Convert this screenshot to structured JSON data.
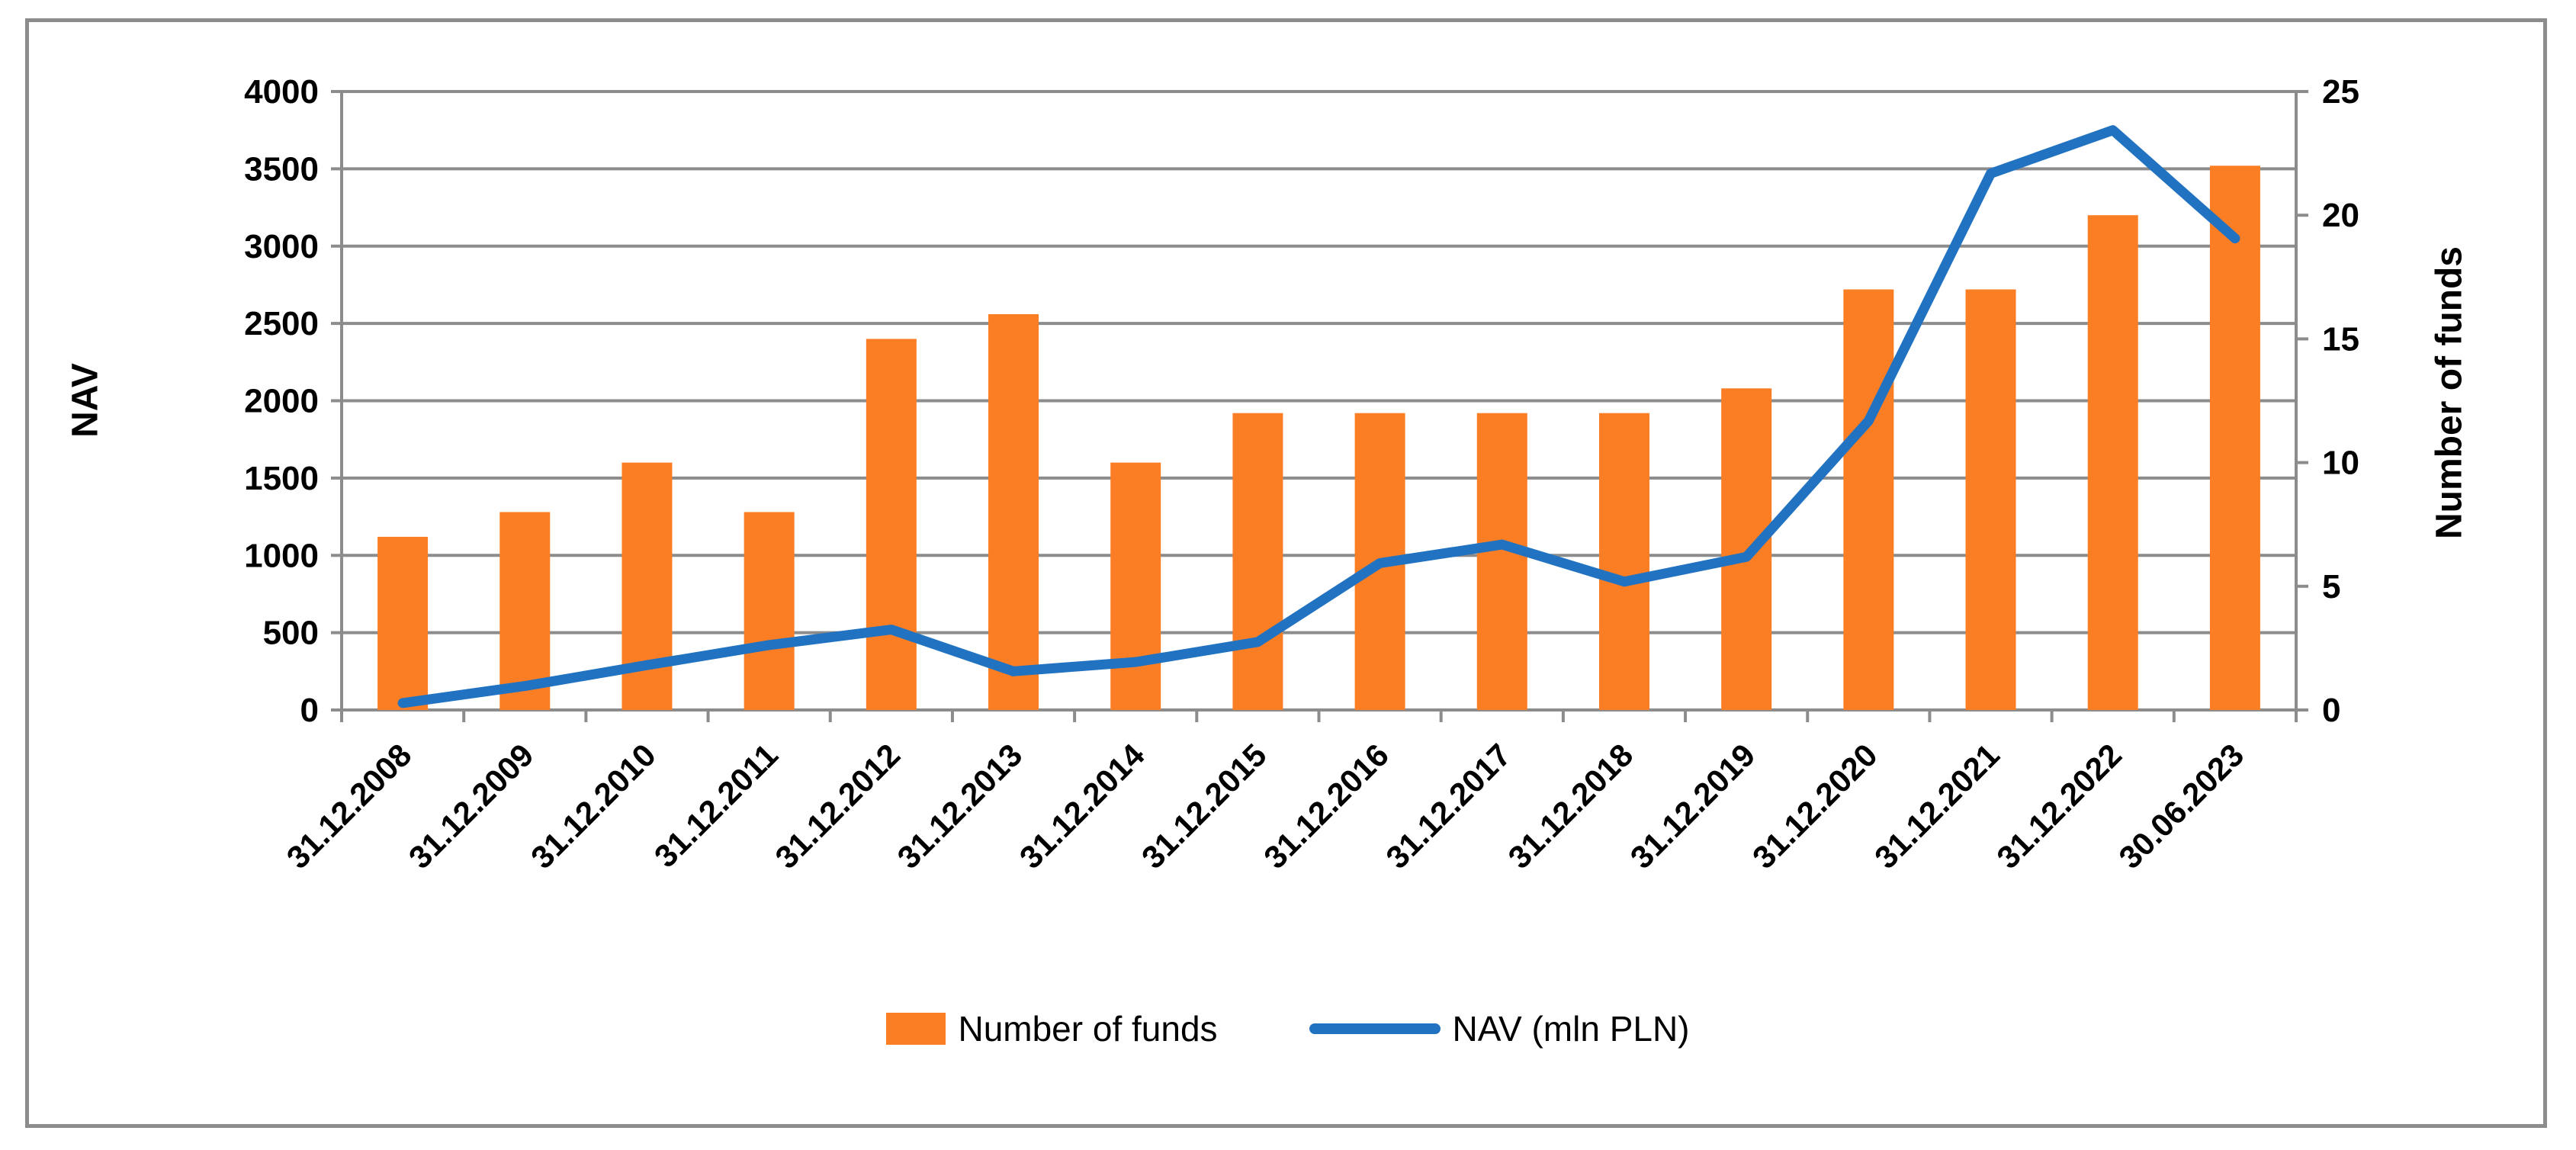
{
  "chart_data": {
    "type": "combo_bar_line",
    "categories": [
      "31.12.2008",
      "31.12.2009",
      "31.12.2010",
      "31.12.2011",
      "31.12.2012",
      "31.12.2013",
      "31.12.2014",
      "31.12.2015",
      "31.12.2016",
      "31.12.2017",
      "31.12.2018",
      "31.12.2019",
      "31.12.2020",
      "31.12.2021",
      "31.12.2022",
      "30.06.2023"
    ],
    "series": [
      {
        "name": "Number of funds",
        "type": "bar",
        "axis": "right",
        "color": "#FC7E24",
        "values": [
          7,
          8,
          10,
          8,
          15,
          16,
          10,
          12,
          12,
          12,
          12,
          13,
          17,
          17,
          20,
          22
        ]
      },
      {
        "name": "NAV (mln PLN)",
        "type": "line",
        "axis": "left",
        "color": "#2173C2",
        "values": [
          45,
          155,
          290,
          420,
          520,
          250,
          310,
          440,
          950,
          1070,
          830,
          990,
          1870,
          3470,
          3750,
          3050
        ]
      }
    ],
    "axes": {
      "left": {
        "title": "NAV",
        "min": 0,
        "max": 4000,
        "tick_step": 500,
        "ticks": [
          0,
          500,
          1000,
          1500,
          2000,
          2500,
          3000,
          3500,
          4000
        ]
      },
      "right": {
        "title": "Number of funds",
        "min": 0,
        "max": 25,
        "tick_step": 5,
        "ticks": [
          0,
          5,
          10,
          15,
          20,
          25
        ]
      }
    },
    "grid": {
      "horizontal": true,
      "color": "#8C8C8C"
    },
    "legend": {
      "position": "bottom",
      "items": [
        {
          "label": "Number of funds",
          "marker": "bar-swatch",
          "color": "#FC7E24"
        },
        {
          "label": "NAV (mln PLN)",
          "marker": "line",
          "color": "#2173C2"
        }
      ]
    },
    "frame_border_color": "#8C8C8C",
    "text_color": "#000000"
  }
}
